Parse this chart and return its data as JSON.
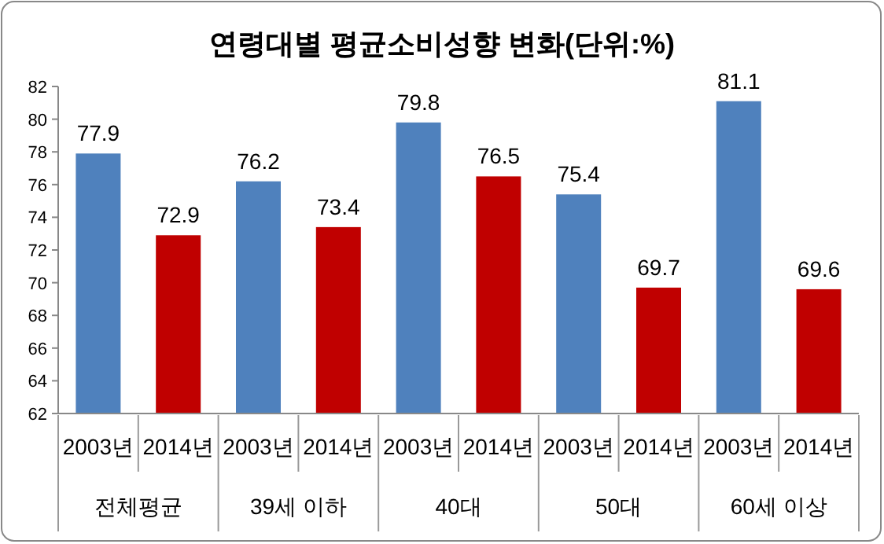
{
  "chart_data": {
    "type": "bar",
    "title": "연령대별 평균소비성향 변화(단위:%)",
    "categories": [
      "2003년",
      "2014년",
      "2003년",
      "2014년",
      "2003년",
      "2014년",
      "2003년",
      "2014년",
      "2003년",
      "2014년"
    ],
    "values": [
      77.9,
      72.9,
      76.2,
      73.4,
      79.8,
      76.5,
      75.4,
      69.7,
      81.1,
      69.6
    ],
    "colors": [
      "#4f81bd",
      "#c00000",
      "#4f81bd",
      "#c00000",
      "#4f81bd",
      "#c00000",
      "#4f81bd",
      "#c00000",
      "#4f81bd",
      "#c00000"
    ],
    "annotations": [
      "전체평균",
      "39세 이하",
      "40대",
      "50대",
      "60세 이상"
    ],
    "ylim": [
      62,
      82
    ],
    "yticks": [
      62,
      64,
      66,
      68,
      70,
      72,
      74,
      76,
      78,
      80,
      82
    ],
    "data_labels": true,
    "grid": false
  }
}
